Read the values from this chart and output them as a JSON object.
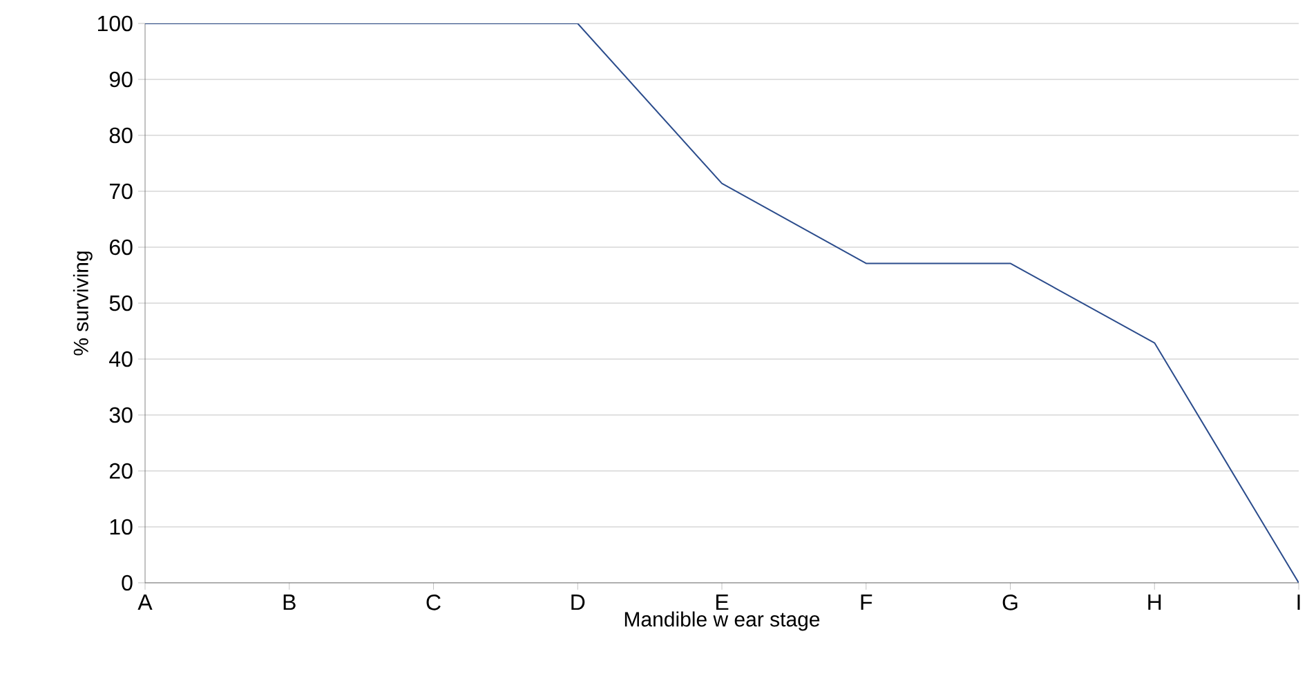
{
  "chart_data": {
    "type": "line",
    "xlabel": "Mandible w ear stage",
    "ylabel": "% surviving",
    "categories": [
      "A",
      "B",
      "C",
      "D",
      "E",
      "F",
      "G",
      "H",
      "I"
    ],
    "series": [
      {
        "color": "#2b4c8c",
        "values": [
          100,
          100,
          100,
          100,
          71.4,
          57.1,
          57.1,
          42.9,
          0
        ]
      }
    ],
    "ylim": [
      0,
      100
    ],
    "yticks": [
      0,
      10,
      20,
      30,
      40,
      50,
      60,
      70,
      80,
      90,
      100
    ],
    "grid": "y",
    "marker": "none",
    "line_style": "solid"
  }
}
